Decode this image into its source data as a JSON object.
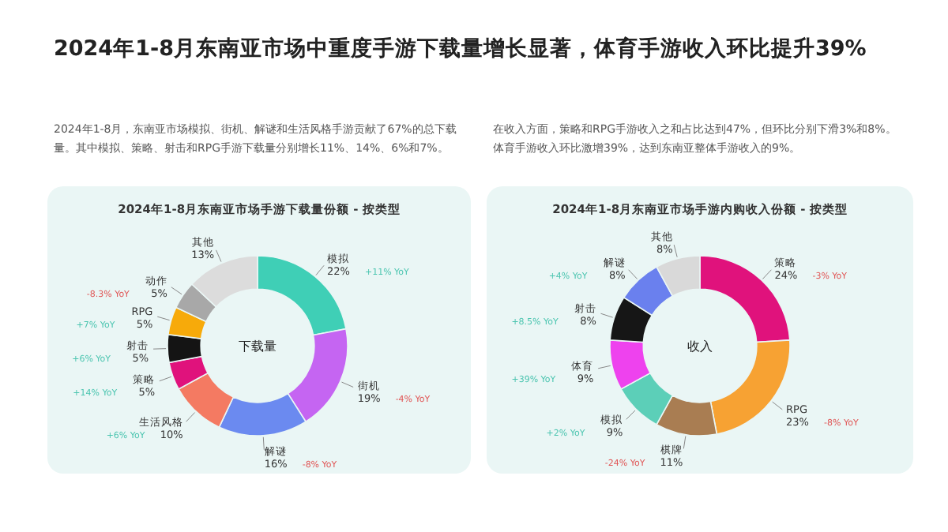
{
  "chart_data": [
    {
      "type": "other",
      "title": "2024年1-8月东南亚市场中重度手游下载量增长显著，体育手游收入环比提升39%"
    },
    {
      "type": "donut",
      "title": "2024年1-8月东南亚市场手游下载量份额 - 按类型",
      "categories": [
        "模拟",
        "街机",
        "解谜",
        "生活风格",
        "策略",
        "射击",
        "RPG",
        "动作",
        "其他"
      ],
      "values": [
        22,
        19,
        16,
        10,
        5,
        5,
        5,
        5,
        13
      ],
      "colors": [
        "#3fcfb6",
        "#c565f2",
        "#6b8af0",
        "#f47a62",
        "#e0127c",
        "#141414",
        "#f7aa0a",
        "#a8a8a8",
        "#dcdcdc"
      ],
      "value_labels": [
        "22%",
        "19%",
        "16%",
        "10%",
        "5%",
        "5%",
        "5%",
        "5%",
        "13%"
      ],
      "annotations": [
        "2024年1-8月，东南亚市场模拟、街机、解谜和生活风格手游贡献了67%的总下载量。其中模拟、策略、射击和RPG手游下载量分别增长11%、14%、6%和7%。",
        "下载量",
        {
          "text": "+11% YoY",
          "x": "模拟"
        },
        {
          "text": "-4% YoY",
          "x": "街机"
        },
        {
          "text": "-8% YoY",
          "x": "解谜"
        },
        {
          "text": "+6% YoY",
          "x": "生活风格"
        },
        {
          "text": "+14% YoY",
          "x": "策略"
        },
        {
          "text": "+6% YoY",
          "x": "射击"
        },
        {
          "text": "+7% YoY",
          "x": "RPG"
        },
        {
          "text": "-8.3% YoY",
          "x": "动作"
        }
      ]
    },
    {
      "type": "donut",
      "title": "2024年1-8月东南亚市场手游内购收入份额 - 按类型",
      "categories": [
        "策略",
        "RPG",
        "棋牌",
        "模拟",
        "体育",
        "射击",
        "解谜",
        "其他"
      ],
      "values": [
        24,
        23,
        11,
        9,
        9,
        8,
        8,
        8
      ],
      "colors": [
        "#e0127c",
        "#f7a233",
        "#a97d52",
        "#5ccfb8",
        "#ee42ee",
        "#161616",
        "#6a80ee",
        "#d9d9d9"
      ],
      "value_labels": [
        "24%",
        "23%",
        "11%",
        "9%",
        "9%",
        "8%",
        "8%",
        "8%"
      ],
      "annotations": [
        "在收入方面，策略和RPG手游收入之和占比达到47%，但环比分别下滑3%和8%。体育手游收入环比激增39%，达到东南亚整体手游收入的9%。",
        "收入",
        {
          "text": "-3% YoY",
          "x": "策略"
        },
        {
          "text": "-8% YoY",
          "x": "RPG"
        },
        {
          "text": "-24% YoY",
          "x": "棋牌"
        },
        {
          "text": "+2% YoY",
          "x": "模拟"
        },
        {
          "text": "+39% YoY",
          "x": "体育"
        },
        {
          "text": "+8.5% YoY",
          "x": "射击"
        },
        {
          "text": "+4% YoY",
          "x": "解谜"
        }
      ]
    }
  ]
}
